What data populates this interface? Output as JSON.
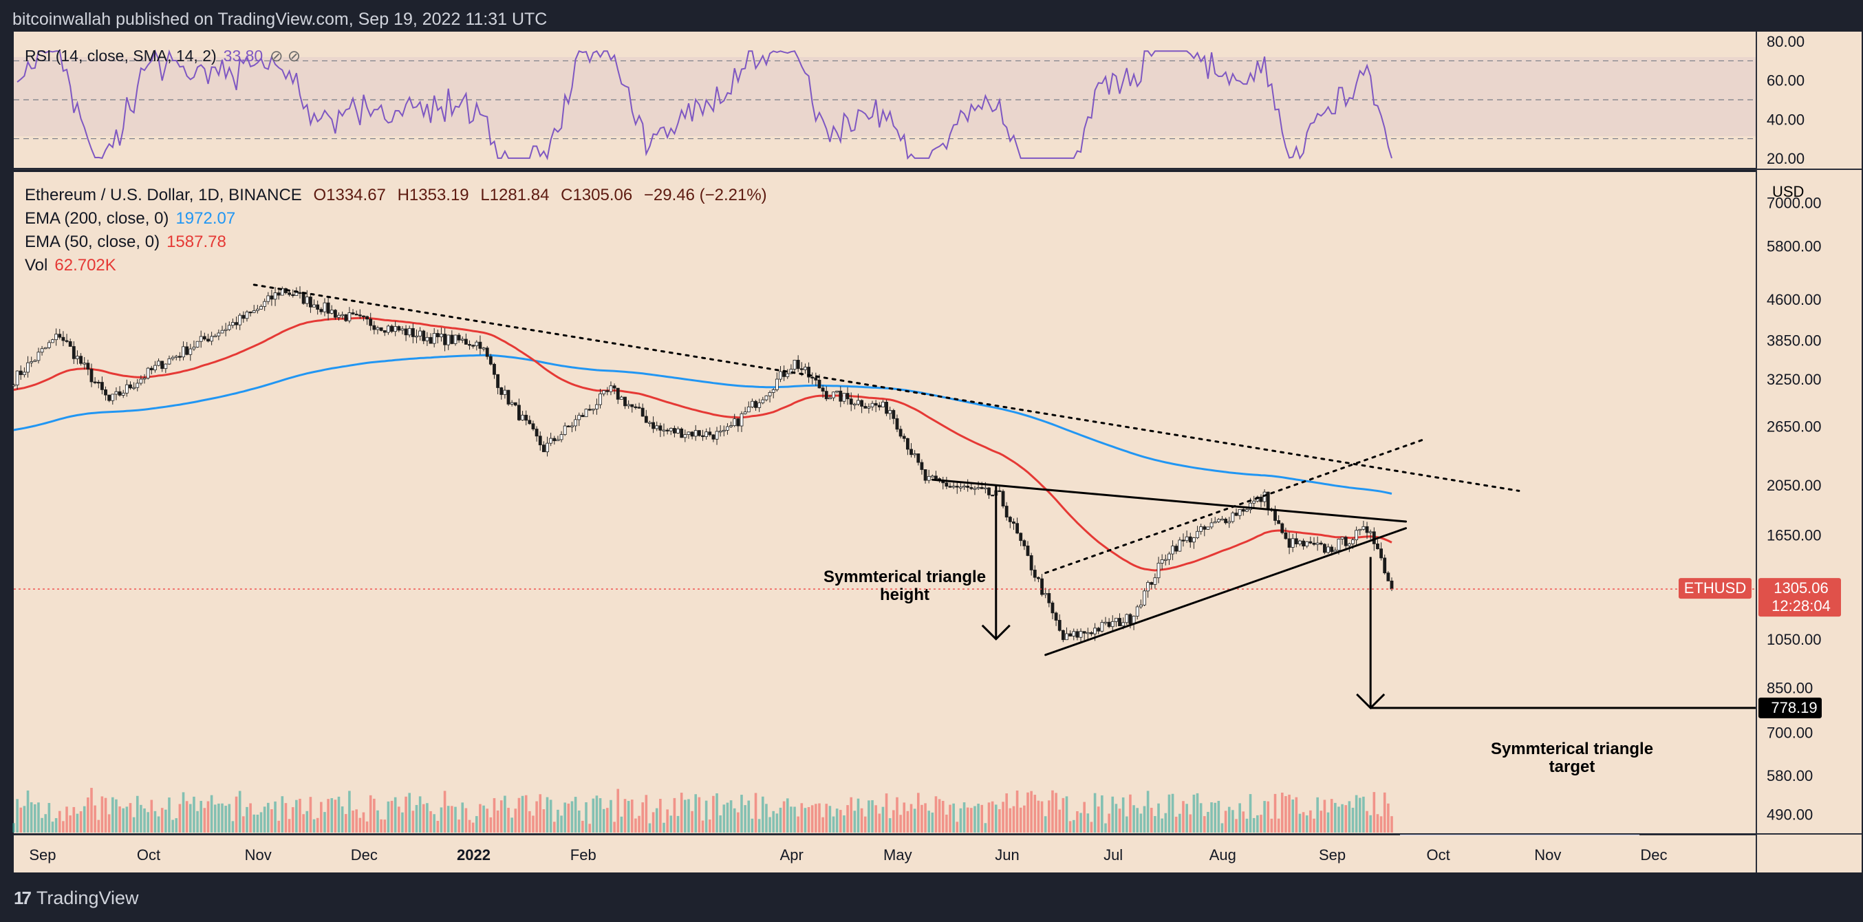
{
  "header": {
    "text": "bitcoinwallah published on TradingView.com, Sep 19, 2022 11:31 UTC"
  },
  "rsi": {
    "label": "RSI (14, close, SMA, 14, 2)",
    "value": "33.80",
    "ticks": [
      "80.00",
      "60.00",
      "40.00",
      "20.00"
    ]
  },
  "legend": {
    "symbol": "Ethereum / U.S. Dollar, 1D, BINANCE",
    "o": "O1334.67",
    "h": "H1353.19",
    "l": "L1281.84",
    "c": "C1305.06",
    "chg": "−29.46 (−2.21%)",
    "ema200_label": "EMA (200, close, 0)",
    "ema200_value": "1972.07",
    "ema50_label": "EMA (50, close, 0)",
    "ema50_value": "1587.78",
    "vol_label": "Vol",
    "vol_value": "62.702K"
  },
  "axis": {
    "currency": "USD",
    "price_ticks": [
      "7000.00",
      "5800.00",
      "4600.00",
      "3850.00",
      "3250.00",
      "2650.00",
      "2050.00",
      "1650.00",
      "1050.00",
      "850.00",
      "700.00",
      "580.00",
      "490.00"
    ],
    "months": [
      "Sep",
      "Oct",
      "Nov",
      "Dec",
      "2022",
      "Feb",
      "Apr",
      "May",
      "Jun",
      "Jul",
      "Aug",
      "Sep",
      "Oct",
      "Nov",
      "Dec"
    ]
  },
  "tags": {
    "symbol": "ETHUSD",
    "price": "1305.06",
    "countdown": "12:28:04",
    "target": "778.19"
  },
  "annotations": {
    "height_line1": "Symmterical triangle",
    "height_line2": "height",
    "target_line1": "Symmterical triangle",
    "target_line2": "target"
  },
  "footer": {
    "brand": "TradingView"
  },
  "colors": {
    "bg": "#f3e1cf",
    "ema200": "#2196f3",
    "ema50": "#e53935",
    "rsi": "#7e57c2",
    "up": "#26a69a",
    "down": "#ef5350"
  },
  "chart_data": {
    "type": "candlestick",
    "symbol": "ETHUSD",
    "scale": "log",
    "ylim": [
      450,
      8000
    ],
    "x_range": [
      "2021-08-25",
      "2022-12-31"
    ],
    "last_close": 1305.06,
    "series": [
      {
        "name": "EMA (200, close, 0)",
        "last": 1972.07
      },
      {
        "name": "EMA (50, close, 0)",
        "last": 1587.78
      }
    ],
    "approx_close": [
      [
        "2021-08-25",
        3250
      ],
      [
        "2021-09-07",
        3950
      ],
      [
        "2021-09-21",
        2950
      ],
      [
        "2021-10-05",
        3450
      ],
      [
        "2021-10-19",
        3900
      ],
      [
        "2021-11-01",
        4350
      ],
      [
        "2021-11-09",
        4800
      ],
      [
        "2021-11-25",
        4300
      ],
      [
        "2021-12-04",
        4150
      ],
      [
        "2021-12-20",
        3900
      ],
      [
        "2022-01-04",
        3800
      ],
      [
        "2022-01-10",
        3100
      ],
      [
        "2022-01-22",
        2400
      ],
      [
        "2022-02-10",
        3100
      ],
      [
        "2022-02-24",
        2600
      ],
      [
        "2022-03-14",
        2550
      ],
      [
        "2022-04-03",
        3500
      ],
      [
        "2022-04-12",
        3050
      ],
      [
        "2022-04-30",
        2850
      ],
      [
        "2022-05-10",
        2100
      ],
      [
        "2022-05-31",
        1950
      ],
      [
        "2022-06-12",
        1300
      ],
      [
        "2022-06-18",
        1050
      ],
      [
        "2022-07-07",
        1150
      ],
      [
        "2022-07-18",
        1550
      ],
      [
        "2022-08-14",
        1950
      ],
      [
        "2022-08-20",
        1600
      ],
      [
        "2022-09-01",
        1550
      ],
      [
        "2022-09-13",
        1700
      ],
      [
        "2022-09-19",
        1305.06
      ]
    ],
    "annotations": [
      {
        "type": "line",
        "style": "dotted",
        "from": [
          "2021-11-01",
          4900
        ],
        "to": [
          "2022-10-25",
          2000
        ]
      },
      {
        "type": "line",
        "style": "solid",
        "from": [
          "2022-05-12",
          2100
        ],
        "to": [
          "2022-09-23",
          1750
        ]
      },
      {
        "type": "line",
        "style": "solid",
        "from": [
          "2022-06-13",
          980
        ],
        "to": [
          "2022-09-23",
          1700
        ]
      },
      {
        "type": "line",
        "style": "dotted",
        "from": [
          "2022-06-13",
          1400
        ],
        "to": [
          "2022-09-28",
          2500
        ]
      },
      {
        "type": "arrow",
        "from": [
          "2022-05-30",
          2050
        ],
        "to": [
          "2022-05-30",
          1050
        ]
      },
      {
        "type": "arrow",
        "from": [
          "2022-09-13",
          1500
        ],
        "to": [
          "2022-09-13",
          778.19
        ]
      },
      {
        "type": "hline",
        "value": 778.19
      }
    ]
  }
}
